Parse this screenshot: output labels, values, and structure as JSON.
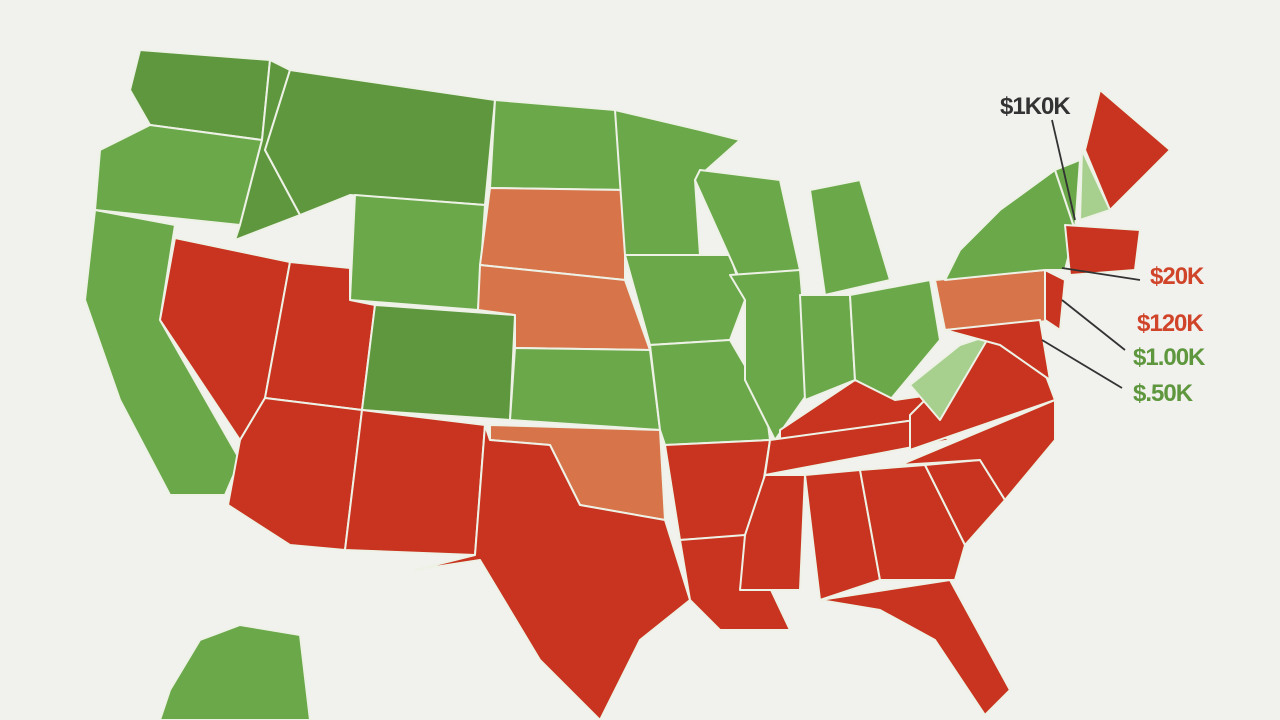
{
  "labels": [
    "$1K0K",
    "$20K",
    "$120K",
    "$1.00K",
    "$.50K"
  ]
}
